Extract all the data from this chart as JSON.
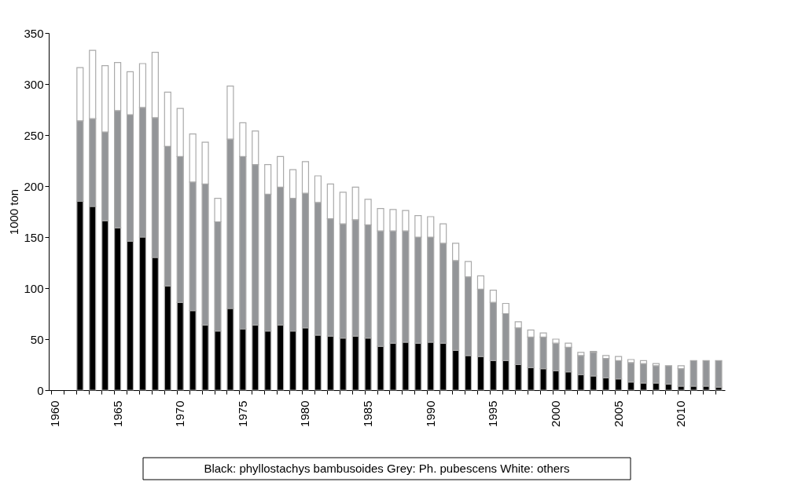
{
  "chart_data": {
    "type": "bar",
    "stacked": true,
    "ylabel": "1000 ton",
    "categories": [
      "1960",
      null,
      null,
      null,
      null,
      "1965",
      null,
      null,
      null,
      null,
      "1970",
      null,
      null,
      null,
      null,
      "1975",
      null,
      null,
      null,
      null,
      "1980",
      null,
      null,
      null,
      null,
      "1985",
      null,
      null,
      null,
      null,
      "1990",
      null,
      null,
      null,
      null,
      "1995",
      null,
      null,
      null,
      null,
      "2000",
      null,
      null,
      null,
      null,
      "2005",
      null,
      null,
      null,
      null,
      "2010",
      null,
      null,
      null
    ],
    "series": [
      {
        "color": "#000000",
        "values": [
          null,
          null,
          185,
          180,
          166,
          159,
          146,
          150,
          130,
          102,
          86,
          78,
          64,
          58,
          80,
          60,
          64,
          58,
          64,
          58,
          61,
          54,
          53,
          51,
          53,
          51,
          43,
          46,
          47,
          46,
          47,
          46,
          39,
          34,
          33,
          29,
          29,
          25,
          22,
          21,
          19,
          18,
          15,
          14,
          12,
          11,
          8,
          7,
          7,
          6,
          4,
          4,
          4,
          3
        ]
      },
      {
        "color": "#939598",
        "values": [
          null,
          null,
          79,
          86,
          87,
          115,
          124,
          127,
          137,
          137,
          143,
          126,
          138,
          107,
          166,
          169,
          157,
          134,
          135,
          130,
          132,
          130,
          115,
          112,
          114,
          111,
          113,
          110,
          109,
          104,
          103,
          98,
          88,
          77,
          66,
          57,
          46,
          36,
          30,
          31,
          27,
          24,
          19,
          23,
          19,
          18,
          19,
          19,
          17,
          18,
          17,
          25,
          25,
          26
        ]
      },
      {
        "color": "#ffffff",
        "values": [
          null,
          null,
          52,
          67,
          65,
          47,
          42,
          43,
          64,
          53,
          47,
          47,
          41,
          23,
          52,
          33,
          33,
          29,
          30,
          28,
          31,
          26,
          34,
          31,
          32,
          25,
          22,
          21,
          20,
          21,
          20,
          19,
          17,
          15,
          13,
          12,
          10,
          6,
          7,
          4,
          4,
          4,
          3,
          1,
          3,
          4,
          3,
          3,
          2,
          0,
          3,
          0,
          0,
          0
        ]
      }
    ],
    "ylim": [
      0,
      350
    ],
    "yticks": [
      0,
      50,
      100,
      150,
      200,
      250,
      300,
      350
    ],
    "grid": false,
    "legend": false,
    "annotations": [
      "Black: phyllostachys bambusoides   Grey: Ph. pubescens White: others"
    ]
  }
}
